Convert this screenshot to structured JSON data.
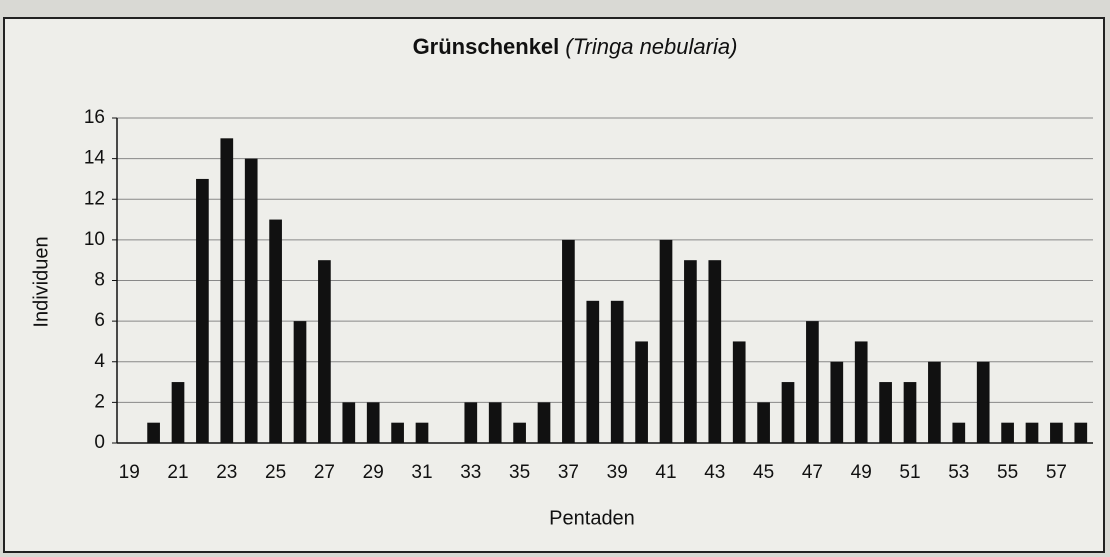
{
  "chart_data": {
    "type": "bar",
    "title": "Grünschenkel",
    "title_species": "(Tringa nebularia)",
    "ylabel": "Individuen",
    "xlabel": "Pentaden",
    "categories": [
      "19",
      null,
      "21",
      null,
      "23",
      null,
      "25",
      null,
      "27",
      null,
      "29",
      null,
      "31",
      null,
      "33",
      null,
      "35",
      null,
      "37",
      null,
      "39",
      null,
      "41",
      null,
      "43",
      null,
      "45",
      null,
      "47",
      null,
      "49",
      null,
      "51",
      null,
      "53",
      null,
      "55",
      null,
      "57",
      null
    ],
    "values": [
      0,
      1,
      3,
      13,
      15,
      14,
      11,
      6,
      9,
      2,
      2,
      1,
      1,
      0,
      2,
      2,
      1,
      2,
      10,
      7,
      7,
      5,
      10,
      9,
      9,
      5,
      2,
      3,
      6,
      4,
      5,
      3,
      3,
      4,
      1,
      4,
      1,
      1,
      1,
      1
    ],
    "color": "#111111",
    "ylim": [
      0,
      16
    ],
    "yticks": [
      0,
      2,
      4,
      6,
      8,
      10,
      12,
      14,
      16
    ],
    "grid": true
  }
}
